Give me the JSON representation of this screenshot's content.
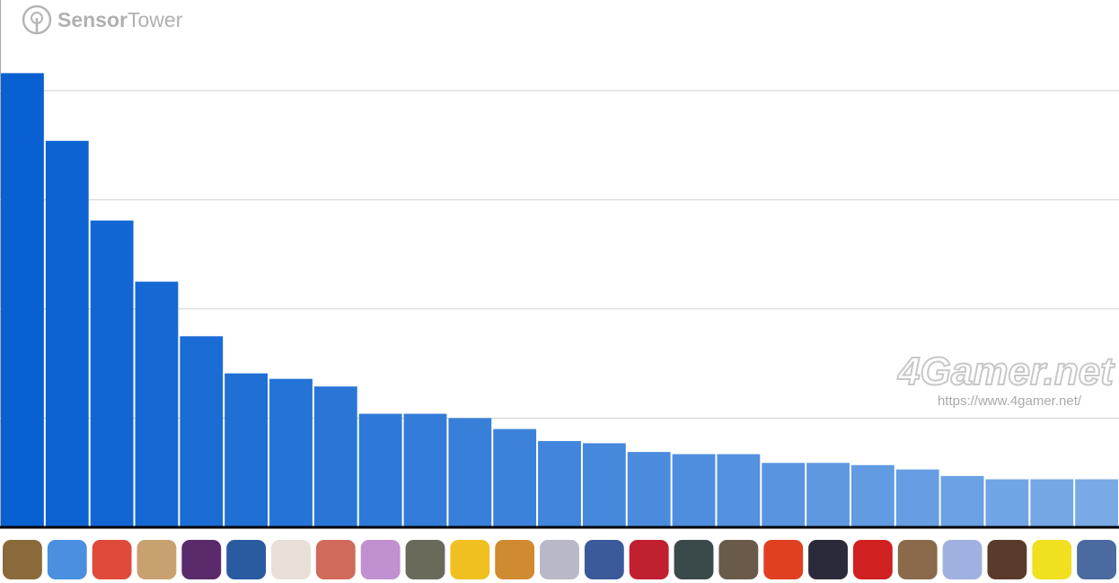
{
  "chart_data": {
    "type": "bar",
    "logo": {
      "bold": "Sensor",
      "light": "Tower"
    },
    "watermark": {
      "brand": "4Gamer.net",
      "url": "https://www.4gamer.net/"
    },
    "categories": [
      null,
      null,
      null,
      null,
      null,
      null,
      null,
      null,
      null,
      null,
      null,
      null,
      null,
      null,
      null,
      null,
      null,
      null,
      null,
      null,
      null,
      null,
      null,
      null,
      null
    ],
    "values": [
      4.16,
      3.54,
      2.81,
      2.25,
      1.75,
      1.41,
      1.36,
      1.29,
      1.04,
      1.04,
      1.0,
      0.9,
      0.79,
      0.77,
      0.69,
      0.67,
      0.67,
      0.59,
      0.59,
      0.57,
      0.53,
      0.47,
      0.44,
      0.44,
      0.44
    ],
    "color_range": [
      "#0860d1",
      "#7aaae6"
    ],
    "ylim": [
      0,
      4.83
    ],
    "yticks": [
      1,
      2,
      3,
      4
    ],
    "grid": true
  }
}
